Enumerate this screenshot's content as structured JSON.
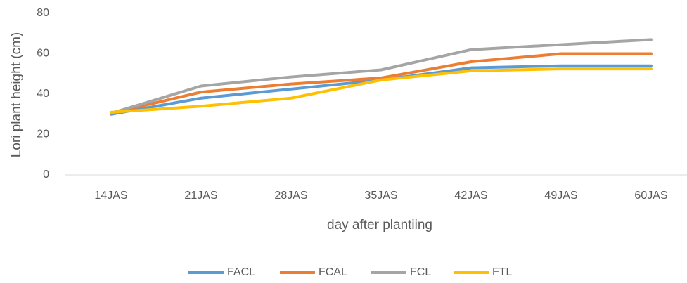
{
  "chart_data": {
    "type": "line",
    "categories": [
      "14JAS",
      "21JAS",
      "28JAS",
      "35JAS",
      "42JAS",
      "49JAS",
      "60JAS"
    ],
    "series": [
      {
        "name": "FACL",
        "color": "#5b9bd5",
        "values": [
          30,
          38,
          42.5,
          47,
          53,
          54,
          54
        ]
      },
      {
        "name": "FCAL",
        "color": "#ed7d31",
        "values": [
          30.5,
          41,
          45,
          48,
          56,
          60,
          60
        ]
      },
      {
        "name": "FCL",
        "color": "#a5a5a5",
        "values": [
          30.5,
          44,
          48.5,
          52,
          62,
          64.5,
          67
        ]
      },
      {
        "name": "FTL",
        "color": "#ffc000",
        "values": [
          31,
          34,
          38,
          47,
          51.5,
          52.5,
          52.5
        ]
      }
    ],
    "x_label": "day after plantiing",
    "y_label": "Lori plant height (cm)",
    "ylim": [
      0,
      80
    ],
    "yticks": [
      0,
      20,
      40,
      60,
      80
    ],
    "grid": false,
    "legend": "bottom"
  }
}
